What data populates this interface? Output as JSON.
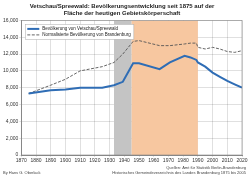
{
  "chart_data": {
    "type": "line",
    "title": "Vetschau/Spreewald: Bevölkerungsentwicklung seit 1875 auf der Fläche der heutigen Gebietskörperschaft",
    "x": [
      1875,
      1890,
      1900,
      1910,
      1925,
      1933,
      1939,
      1946,
      1950,
      1964,
      1971,
      1981,
      1985,
      1989,
      1990,
      1995,
      2000,
      2005,
      2010,
      2015,
      2020
    ],
    "series": [
      {
        "name": "Bevölkerung von Vetschau/Spreewald",
        "color": "#2f6db5",
        "line_style": "solid",
        "values": [
          7300,
          7700,
          7800,
          8000,
          8000,
          8300,
          8700,
          10900,
          10900,
          10200,
          11000,
          11800,
          11600,
          11300,
          11000,
          10500,
          9800,
          9300,
          8800,
          8400,
          8000
        ]
      },
      {
        "name": "Normalisierte Bevölkerung von Brandenburg",
        "color": "#555555",
        "line_style": "dashed",
        "values": [
          7300,
          8300,
          9000,
          10000,
          10500,
          11000,
          12000,
          13500,
          13600,
          13000,
          13000,
          13200,
          13300,
          13300,
          12800,
          12600,
          12800,
          12600,
          12300,
          12200,
          12400
        ]
      }
    ],
    "xlim": [
      1870,
      2020
    ],
    "xticks": [
      1870,
      1880,
      1890,
      1900,
      1910,
      1920,
      1930,
      1940,
      1950,
      1960,
      1970,
      1980,
      1990,
      2000,
      2010,
      2020
    ],
    "ylim": [
      0,
      16000
    ],
    "yticks": [
      0,
      {
        "value": 2000,
        "label": "2,000"
      },
      {
        "value": 4000,
        "label": "4,000"
      },
      {
        "value": 6000,
        "label": "6,000"
      },
      {
        "value": 8000,
        "label": "8,000"
      },
      {
        "value": 10000,
        "label": "10,000"
      },
      {
        "value": 12000,
        "label": "12,000"
      },
      {
        "value": 14000,
        "label": "14,000"
      },
      {
        "value": 16000,
        "label": "16,000"
      }
    ],
    "grid": true,
    "legend": "upper left",
    "shaded_periods": [
      {
        "from": 1933,
        "to": 1945,
        "color": "#c4c4c4"
      },
      {
        "from": 1945,
        "to": 1990,
        "color": "#f7c7a0"
      }
    ],
    "annotations": {
      "author": "By Hans G. Oberlack",
      "source": [
        "Quellen: Amt für Statistik Berlin-Brandenburg",
        "Historisches Gemeindeverzeichnis des Landes Brandenburg 1875 bis 2005"
      ]
    }
  }
}
